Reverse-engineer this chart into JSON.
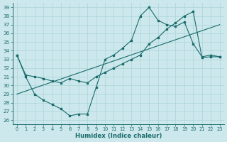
{
  "xlabel": "Humidex (Indice chaleur)",
  "bg_color": "#cce8ec",
  "grid_color": "#aad4d8",
  "line_color": "#1a6b6b",
  "ylim": [
    25.5,
    39.5
  ],
  "xlim": [
    -0.5,
    23.5
  ],
  "yticks": [
    26,
    27,
    28,
    29,
    30,
    31,
    32,
    33,
    34,
    35,
    36,
    37,
    38,
    39
  ],
  "xticks": [
    0,
    1,
    2,
    3,
    4,
    5,
    6,
    7,
    8,
    9,
    10,
    11,
    12,
    13,
    14,
    15,
    16,
    17,
    18,
    19,
    20,
    21,
    22,
    23
  ],
  "line1_x": [
    0,
    1,
    2,
    3,
    4,
    5,
    6,
    7,
    8,
    9,
    10,
    11,
    12,
    13,
    14,
    15,
    16,
    17,
    18,
    19,
    20,
    21,
    22,
    23
  ],
  "line1_y": [
    33.5,
    31.0,
    29.0,
    28.3,
    27.8,
    27.3,
    26.5,
    26.7,
    26.7,
    29.8,
    33.0,
    33.5,
    34.3,
    35.2,
    38.0,
    39.0,
    37.5,
    37.0,
    36.8,
    37.3,
    34.8,
    33.3,
    33.5,
    33.3
  ],
  "line2_x": [
    0,
    1,
    2,
    3,
    4,
    5,
    6,
    7,
    8,
    9,
    10,
    11,
    12,
    13,
    14,
    15,
    16,
    17,
    18,
    19,
    20,
    21,
    22,
    23
  ],
  "line2_y": [
    33.5,
    31.2,
    31.0,
    30.8,
    30.5,
    30.3,
    30.8,
    30.5,
    30.3,
    31.0,
    31.5,
    32.0,
    32.5,
    33.0,
    33.5,
    34.8,
    35.5,
    36.5,
    37.2,
    38.0,
    38.5,
    33.2,
    33.3,
    33.3
  ],
  "line3_x": [
    0,
    23
  ],
  "line3_y": [
    29.0,
    37.0
  ]
}
